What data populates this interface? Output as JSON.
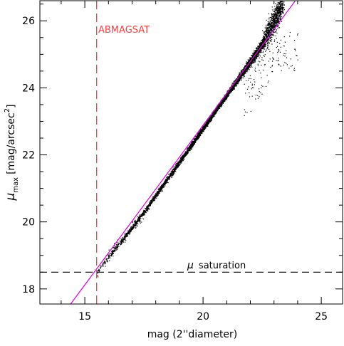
{
  "chart_data": {
    "type": "scatter",
    "title": "",
    "xlabel": "mag (2''diameter)",
    "ylabel": {
      "symbol": "μ",
      "subscript": "max",
      "units_prefix": "[mag/arcsec",
      "units_exponent": "2",
      "units_suffix": "]"
    },
    "xlim": [
      13.1,
      25.9
    ],
    "ylim": [
      17.55,
      26.6
    ],
    "xticks": [
      15,
      20,
      25
    ],
    "xtick_labels": [
      "15",
      "20",
      "25"
    ],
    "yticks": [
      18,
      20,
      22,
      24,
      26
    ],
    "ytick_labels": [
      "18",
      "20",
      "22",
      "24",
      "26"
    ],
    "grid": false,
    "scatter_cloud": {
      "color": "#000000",
      "description_points": [
        {
          "x": 15.6,
          "y": 18.6
        },
        {
          "x": 16.5,
          "y": 19.4
        },
        {
          "x": 17.5,
          "y": 20.3
        },
        {
          "x": 18.5,
          "y": 21.3
        },
        {
          "x": 19.5,
          "y": 22.3
        },
        {
          "x": 20.5,
          "y": 23.3
        },
        {
          "x": 21.5,
          "y": 24.3
        },
        {
          "x": 22.5,
          "y": 25.3
        },
        {
          "x": 23.0,
          "y": 26.0
        }
      ],
      "x_min": 15.4,
      "x_max": 24.0
    },
    "fit_line": {
      "color": "#e000e0",
      "points": [
        {
          "x": 14.4,
          "y": 17.55
        },
        {
          "x": 23.9,
          "y": 26.6
        }
      ]
    },
    "vertical_line": {
      "x": 15.5,
      "color": "#ff4040",
      "style": "dashed",
      "label": "ABMAGSAT"
    },
    "horizontal_line": {
      "y": 18.5,
      "color": "#000000",
      "style": "dashed",
      "label_symbol": "μ",
      "label_text": "saturation"
    }
  }
}
